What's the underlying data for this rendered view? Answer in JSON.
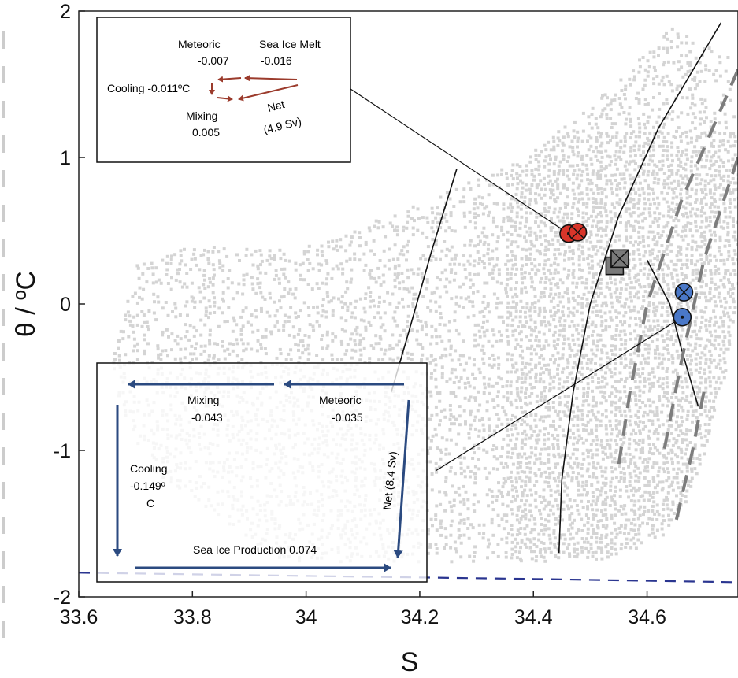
{
  "chart_data": {
    "type": "scatter",
    "xlabel": "S",
    "ylabel": "θ / ºC",
    "xlim": [
      33.6,
      34.76
    ],
    "ylim": [
      -2.0,
      2.0
    ],
    "xticks": [
      "33.6",
      "33.8",
      "34",
      "34.2",
      "34.4",
      "34.6"
    ],
    "yticks": [
      "-2",
      "-1",
      "0",
      "1",
      "2"
    ],
    "grid": false,
    "legend": "none",
    "cloud_color": "#d4d4d4",
    "background_points": {
      "description": "",
      "outline": [
        [
          33.95,
          -1.75
        ],
        [
          34.45,
          -1.75
        ],
        [
          34.55,
          -1.72
        ],
        [
          34.62,
          -1.6
        ],
        [
          34.66,
          -1.4
        ],
        [
          34.7,
          -1.0
        ],
        [
          34.74,
          -0.4
        ],
        [
          34.76,
          0.2
        ],
        [
          34.76,
          1.0
        ],
        [
          34.74,
          1.7
        ],
        [
          34.64,
          1.9
        ],
        [
          34.54,
          1.5
        ],
        [
          34.38,
          1.0
        ],
        [
          34.2,
          0.7
        ],
        [
          34.0,
          0.4
        ],
        [
          33.8,
          0.4
        ],
        [
          33.7,
          0.3
        ],
        [
          33.65,
          -0.5
        ],
        [
          33.72,
          -1.1
        ],
        [
          33.9,
          -1.6
        ]
      ]
    },
    "markers": [
      {
        "shape": "circle-dot",
        "color": "#d8352a",
        "S": 34.462,
        "theta": 0.48
      },
      {
        "shape": "circle-cross",
        "color": "#d8352a",
        "S": 34.478,
        "theta": 0.49
      },
      {
        "shape": "square-dot",
        "color": "#7a7a7a",
        "S": 34.543,
        "theta": 0.26
      },
      {
        "shape": "square-cross",
        "color": "#7a7a7a",
        "S": 34.552,
        "theta": 0.31
      },
      {
        "shape": "circle-cross",
        "color": "#4a78c8",
        "S": 34.665,
        "theta": 0.08
      },
      {
        "shape": "circle-dot",
        "color": "#4a78c8",
        "S": 34.662,
        "theta": -0.09
      }
    ],
    "isopycnals_solid": [
      {
        "points": [
          [
            34.265,
            0.92
          ],
          [
            34.22,
            0.35
          ],
          [
            34.18,
            -0.2
          ],
          [
            34.15,
            -0.6
          ]
        ]
      },
      {
        "points": [
          [
            34.73,
            1.92
          ],
          [
            34.62,
            1.2
          ],
          [
            34.55,
            0.6
          ],
          [
            34.5,
            0.0
          ],
          [
            34.47,
            -0.6
          ],
          [
            34.45,
            -1.2
          ],
          [
            34.445,
            -1.7
          ]
        ]
      },
      {
        "points": [
          [
            34.69,
            -0.7
          ],
          [
            34.66,
            -0.3
          ],
          [
            34.64,
            0.0
          ],
          [
            34.6,
            0.3
          ]
        ]
      }
    ],
    "isopycnals_dashed": [
      {
        "points": [
          [
            34.76,
            1.6
          ],
          [
            34.66,
            0.7
          ],
          [
            34.6,
            0.0
          ],
          [
            34.57,
            -0.6
          ],
          [
            34.55,
            -1.1
          ]
        ]
      },
      {
        "points": [
          [
            34.76,
            1.0
          ],
          [
            34.7,
            0.3
          ],
          [
            34.66,
            -0.4
          ],
          [
            34.63,
            -1.0
          ]
        ]
      },
      {
        "points": [
          [
            34.7,
            -0.6
          ],
          [
            34.68,
            -1.0
          ],
          [
            34.65,
            -1.5
          ]
        ]
      }
    ],
    "freezing_line": {
      "color": "#2a3590",
      "points": [
        [
          33.6,
          -1.835
        ],
        [
          34.0,
          -1.857
        ],
        [
          34.4,
          -1.878
        ],
        [
          34.76,
          -1.9
        ]
      ]
    },
    "insets": [
      {
        "name": "warm",
        "arrow_color": "#9b3b2c",
        "anchor_marker": 0,
        "labels": {
          "meteoric": "Meteoric",
          "meteoric_value": "-0.007",
          "sea_ice_melt": "Sea Ice Melt",
          "sea_ice_melt_value": "-0.016",
          "cooling": "Cooling -0.011ºC",
          "mixing": "Mixing",
          "mixing_value": "0.005",
          "net": "Net",
          "net_transport": "(4.9 Sv)"
        }
      },
      {
        "name": "cold",
        "arrow_color": "#2b4a80",
        "anchor_marker": 5,
        "labels": {
          "mixing": "Mixing",
          "mixing_value": "-0.043",
          "meteoric": "Meteoric",
          "meteoric_value": "-0.035",
          "cooling": "Cooling",
          "cooling_value": "-0.149º",
          "cooling_unit": "C",
          "net": "Net (8.4 Sv)",
          "sea_ice_production": "Sea Ice Production 0.074"
        }
      }
    ]
  }
}
